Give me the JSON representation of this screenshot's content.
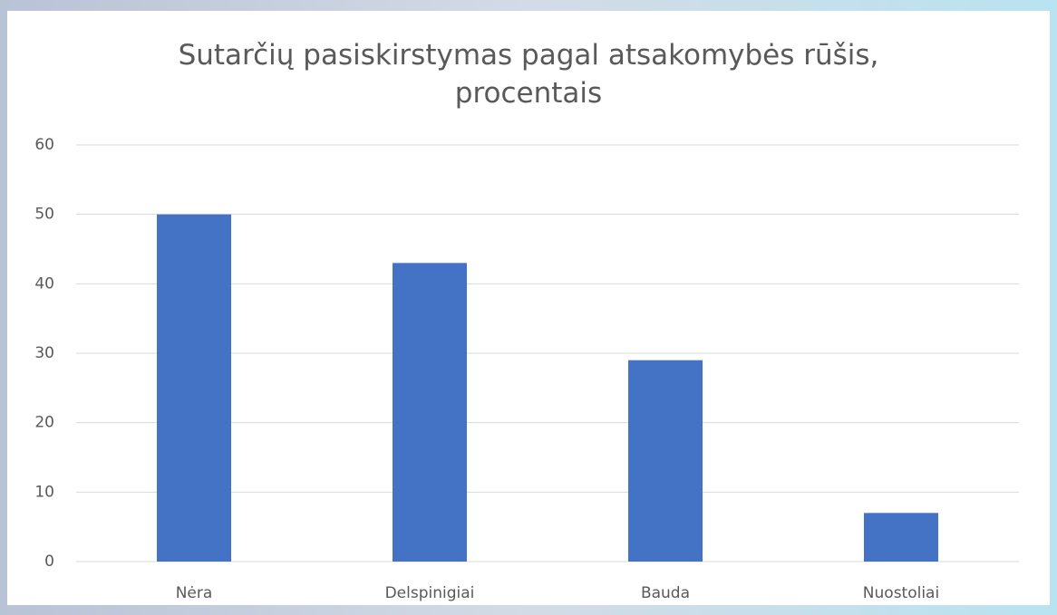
{
  "chart_data": {
    "type": "bar",
    "title": "Sutarčių pasiskirstymas pagal atsakomybės rūšis, procentais",
    "categories": [
      "Nėra",
      "Delspinigiai",
      "Bauda",
      "Nuostoliai"
    ],
    "values": [
      50,
      43,
      29,
      7
    ],
    "color": "#4472c4",
    "ylim": [
      0,
      60
    ],
    "yticks": [
      0,
      10,
      20,
      30,
      40,
      50,
      60
    ],
    "grid": true
  }
}
